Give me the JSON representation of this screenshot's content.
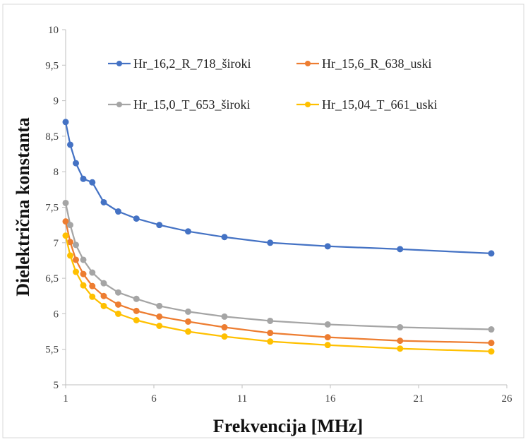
{
  "chart_data": {
    "type": "line",
    "title": "",
    "xlabel": "Frekvencija [MHz]",
    "ylabel": "Dielektrična konstanta",
    "xlim": [
      1,
      26
    ],
    "ylim": [
      5,
      10
    ],
    "xticks": [
      1,
      6,
      11,
      16,
      21,
      26
    ],
    "yticks": [
      5,
      5.5,
      6,
      6.5,
      7,
      7.5,
      8,
      8.5,
      9,
      9.5,
      10
    ],
    "ytick_labels": [
      "5",
      "5,5",
      "6",
      "6,5",
      "7",
      "7,5",
      "8",
      "8,5",
      "9",
      "9,5",
      "10"
    ],
    "xtick_labels": [
      "1",
      "6",
      "11",
      "16",
      "21",
      "26"
    ],
    "grid": false,
    "legend_position": "top-right",
    "x": [
      1.0,
      1.26,
      1.58,
      2.0,
      2.51,
      3.16,
      3.98,
      5.01,
      6.31,
      7.94,
      10.0,
      12.59,
      15.85,
      19.95,
      25.12
    ],
    "series": [
      {
        "name": "Hr_16,2_R_718_široki",
        "color": "#4472C4",
        "values": [
          8.7,
          8.38,
          8.12,
          7.9,
          7.85,
          7.57,
          7.44,
          7.34,
          7.25,
          7.16,
          7.08,
          7.0,
          6.95,
          6.91,
          6.85
        ]
      },
      {
        "name": "Hr_15,6_R_638_uski",
        "color": "#ED7D31",
        "values": [
          7.3,
          7.01,
          6.76,
          6.56,
          6.39,
          6.25,
          6.13,
          6.04,
          5.96,
          5.89,
          5.81,
          5.73,
          5.67,
          5.62,
          5.59
        ]
      },
      {
        "name": "Hr_15,0_T_653_široki",
        "color": "#A5A5A5",
        "values": [
          7.56,
          7.25,
          6.97,
          6.76,
          6.58,
          6.43,
          6.3,
          6.21,
          6.11,
          6.03,
          5.96,
          5.9,
          5.85,
          5.81,
          5.78
        ]
      },
      {
        "name": "Hr_15,04_T_661_uski",
        "color": "#FFC000",
        "values": [
          7.1,
          6.82,
          6.59,
          6.4,
          6.24,
          6.11,
          6.0,
          5.91,
          5.83,
          5.75,
          5.68,
          5.61,
          5.56,
          5.51,
          5.47
        ]
      }
    ]
  }
}
